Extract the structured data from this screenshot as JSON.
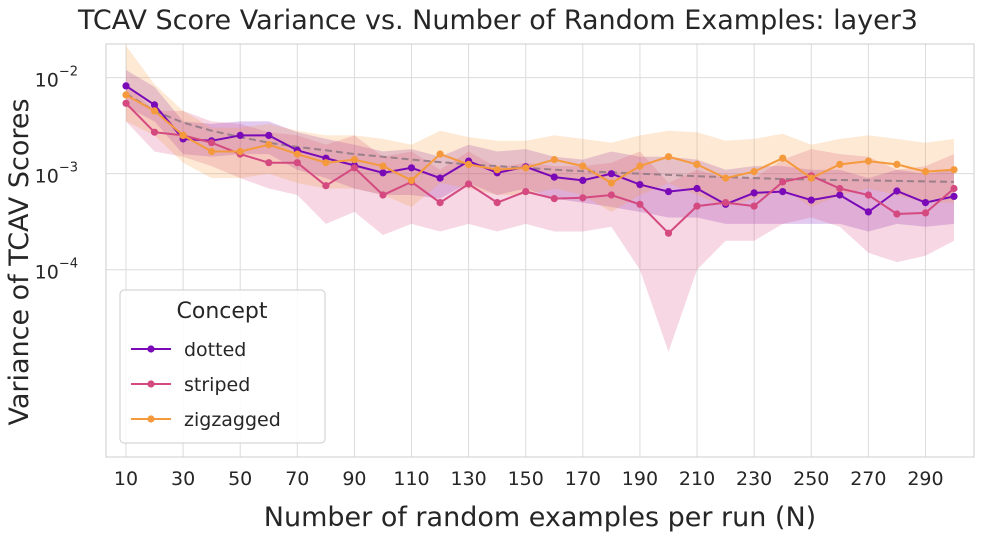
{
  "chart_data": {
    "type": "line",
    "title": "TCAV Score Variance vs. Number of Random Examples: layer3",
    "xlabel": "Number of random examples per run (N)",
    "ylabel": "Variance of TCAV Scores",
    "yscale": "log",
    "xlim": [
      3,
      307
    ],
    "ylim_log10": [
      -5.95,
      -1.65
    ],
    "x": [
      10,
      20,
      30,
      40,
      50,
      60,
      70,
      80,
      90,
      100,
      110,
      120,
      130,
      140,
      150,
      160,
      170,
      180,
      190,
      200,
      210,
      220,
      230,
      240,
      250,
      260,
      270,
      280,
      290,
      300
    ],
    "xticks": [
      10,
      30,
      50,
      70,
      90,
      110,
      130,
      150,
      170,
      190,
      210,
      230,
      250,
      270,
      290
    ],
    "xtick_labels": [
      "10",
      "30",
      "50",
      "70",
      "90",
      "110",
      "130",
      "150",
      "170",
      "190",
      "210",
      "230",
      "250",
      "270",
      "290"
    ],
    "yticks": [
      {
        "value_log10": -4,
        "base": "10",
        "exp": "−4"
      },
      {
        "value_log10": -3,
        "base": "10",
        "exp": "−3"
      },
      {
        "value_log10": -2,
        "base": "10",
        "exp": "−2"
      }
    ],
    "grid": true,
    "legend": {
      "title": "Concept",
      "position": "lower-left"
    },
    "series": [
      {
        "name": "dotted",
        "color": "#7a0ab8",
        "values": [
          0.0082,
          0.0052,
          0.0023,
          0.0022,
          0.0025,
          0.0025,
          0.00175,
          0.00145,
          0.00122,
          0.00102,
          0.00115,
          0.0009,
          0.00135,
          0.00102,
          0.00118,
          0.00092,
          0.00085,
          0.001,
          0.00077,
          0.00065,
          0.0007,
          0.00048,
          0.00063,
          0.00065,
          0.00053,
          0.0006,
          0.0004,
          0.00066,
          0.0005,
          0.00058
        ],
        "band_lower": [
          0.005,
          0.0035,
          0.0016,
          0.0015,
          0.0016,
          0.0016,
          0.0011,
          0.0009,
          0.0007,
          0.0006,
          0.0006,
          0.00055,
          0.0008,
          0.0006,
          0.0007,
          0.00055,
          0.0005,
          0.00045,
          0.0004,
          0.00035,
          0.00035,
          0.0003,
          0.0003,
          0.0003,
          0.0003,
          0.0003,
          0.00025,
          0.0003,
          0.00028,
          0.0003
        ],
        "band_upper": [
          0.012,
          0.008,
          0.0035,
          0.0033,
          0.0035,
          0.0035,
          0.0027,
          0.0023,
          0.002,
          0.0017,
          0.0018,
          0.0015,
          0.002,
          0.0017,
          0.0018,
          0.0015,
          0.0014,
          0.0017,
          0.0015,
          0.0015,
          0.0014,
          0.0011,
          0.0012,
          0.0012,
          0.0011,
          0.0011,
          0.0009,
          0.0011,
          0.001,
          0.0011
        ]
      },
      {
        "name": "striped",
        "color": "#d44a80",
        "values": [
          0.0054,
          0.0027,
          0.0025,
          0.0021,
          0.0016,
          0.0013,
          0.0013,
          0.00075,
          0.00115,
          0.0006,
          0.00082,
          0.0005,
          0.00078,
          0.0005,
          0.00065,
          0.00055,
          0.00056,
          0.0006,
          0.00048,
          0.00024,
          0.00046,
          0.0005,
          0.00046,
          0.00082,
          0.00095,
          0.0007,
          0.0006,
          0.00038,
          0.00039,
          0.0007
        ],
        "band_lower": [
          0.0035,
          0.0017,
          0.0015,
          0.0012,
          0.0009,
          0.0007,
          0.0006,
          0.0003,
          0.0004,
          0.00023,
          0.0003,
          0.00025,
          0.0003,
          0.00025,
          0.0003,
          0.00025,
          0.00025,
          0.00028,
          0.0001,
          1.4e-05,
          0.0001,
          0.0002,
          0.0002,
          0.0003,
          0.00035,
          0.00028,
          0.00015,
          0.00012,
          0.00014,
          0.0002
        ],
        "band_upper": [
          0.0085,
          0.0045,
          0.0045,
          0.0035,
          0.0033,
          0.0027,
          0.0025,
          0.002,
          0.0025,
          0.0015,
          0.0017,
          0.0011,
          0.0017,
          0.00115,
          0.0013,
          0.0012,
          0.0012,
          0.0013,
          0.0017,
          0.0008,
          0.0011,
          0.0009,
          0.0009,
          0.0014,
          0.0018,
          0.0016,
          0.0015,
          0.0011,
          0.0012,
          0.0016
        ]
      },
      {
        "name": "zigzagged",
        "color": "#f59a3c",
        "values": [
          0.0066,
          0.0045,
          0.0025,
          0.0017,
          0.0017,
          0.002,
          0.0016,
          0.0013,
          0.0014,
          0.0012,
          0.00085,
          0.0016,
          0.00125,
          0.0011,
          0.00115,
          0.0014,
          0.0012,
          0.0008,
          0.0012,
          0.0015,
          0.00125,
          0.0009,
          0.00105,
          0.00145,
          0.0009,
          0.00125,
          0.00135,
          0.00125,
          0.00105,
          0.0011
        ],
        "band_lower": [
          0.0035,
          0.0025,
          0.0013,
          0.0009,
          0.0009,
          0.001,
          0.0008,
          0.0007,
          0.0007,
          0.0006,
          0.00045,
          0.0008,
          0.0007,
          0.0006,
          0.0006,
          0.0007,
          0.0006,
          0.0004,
          0.0006,
          0.0008,
          0.0006,
          0.00045,
          0.00055,
          0.0007,
          0.00045,
          0.0006,
          0.0007,
          0.0006,
          0.0005,
          0.0005
        ],
        "band_upper": [
          0.0215,
          0.0085,
          0.0045,
          0.003,
          0.003,
          0.0033,
          0.0028,
          0.0025,
          0.0025,
          0.0023,
          0.002,
          0.0028,
          0.0024,
          0.0022,
          0.0022,
          0.0025,
          0.0023,
          0.0021,
          0.0025,
          0.0028,
          0.0027,
          0.0022,
          0.0023,
          0.0026,
          0.002,
          0.0023,
          0.0025,
          0.0023,
          0.0021,
          0.0023
        ]
      }
    ],
    "trend": {
      "name": "trend",
      "color": "#9a7f8a",
      "style": "dashed",
      "values": [
        0.0068,
        0.0045,
        0.0034,
        0.0028,
        0.0024,
        0.0021,
        0.0019,
        0.00175,
        0.0016,
        0.0015,
        0.0014,
        0.00132,
        0.00125,
        0.0012,
        0.00115,
        0.0011,
        0.00106,
        0.00103,
        0.001,
        0.00097,
        0.00094,
        0.00092,
        0.0009,
        0.00088,
        0.00087,
        0.00086,
        0.00085,
        0.00084,
        0.00083,
        0.00082
      ]
    }
  }
}
